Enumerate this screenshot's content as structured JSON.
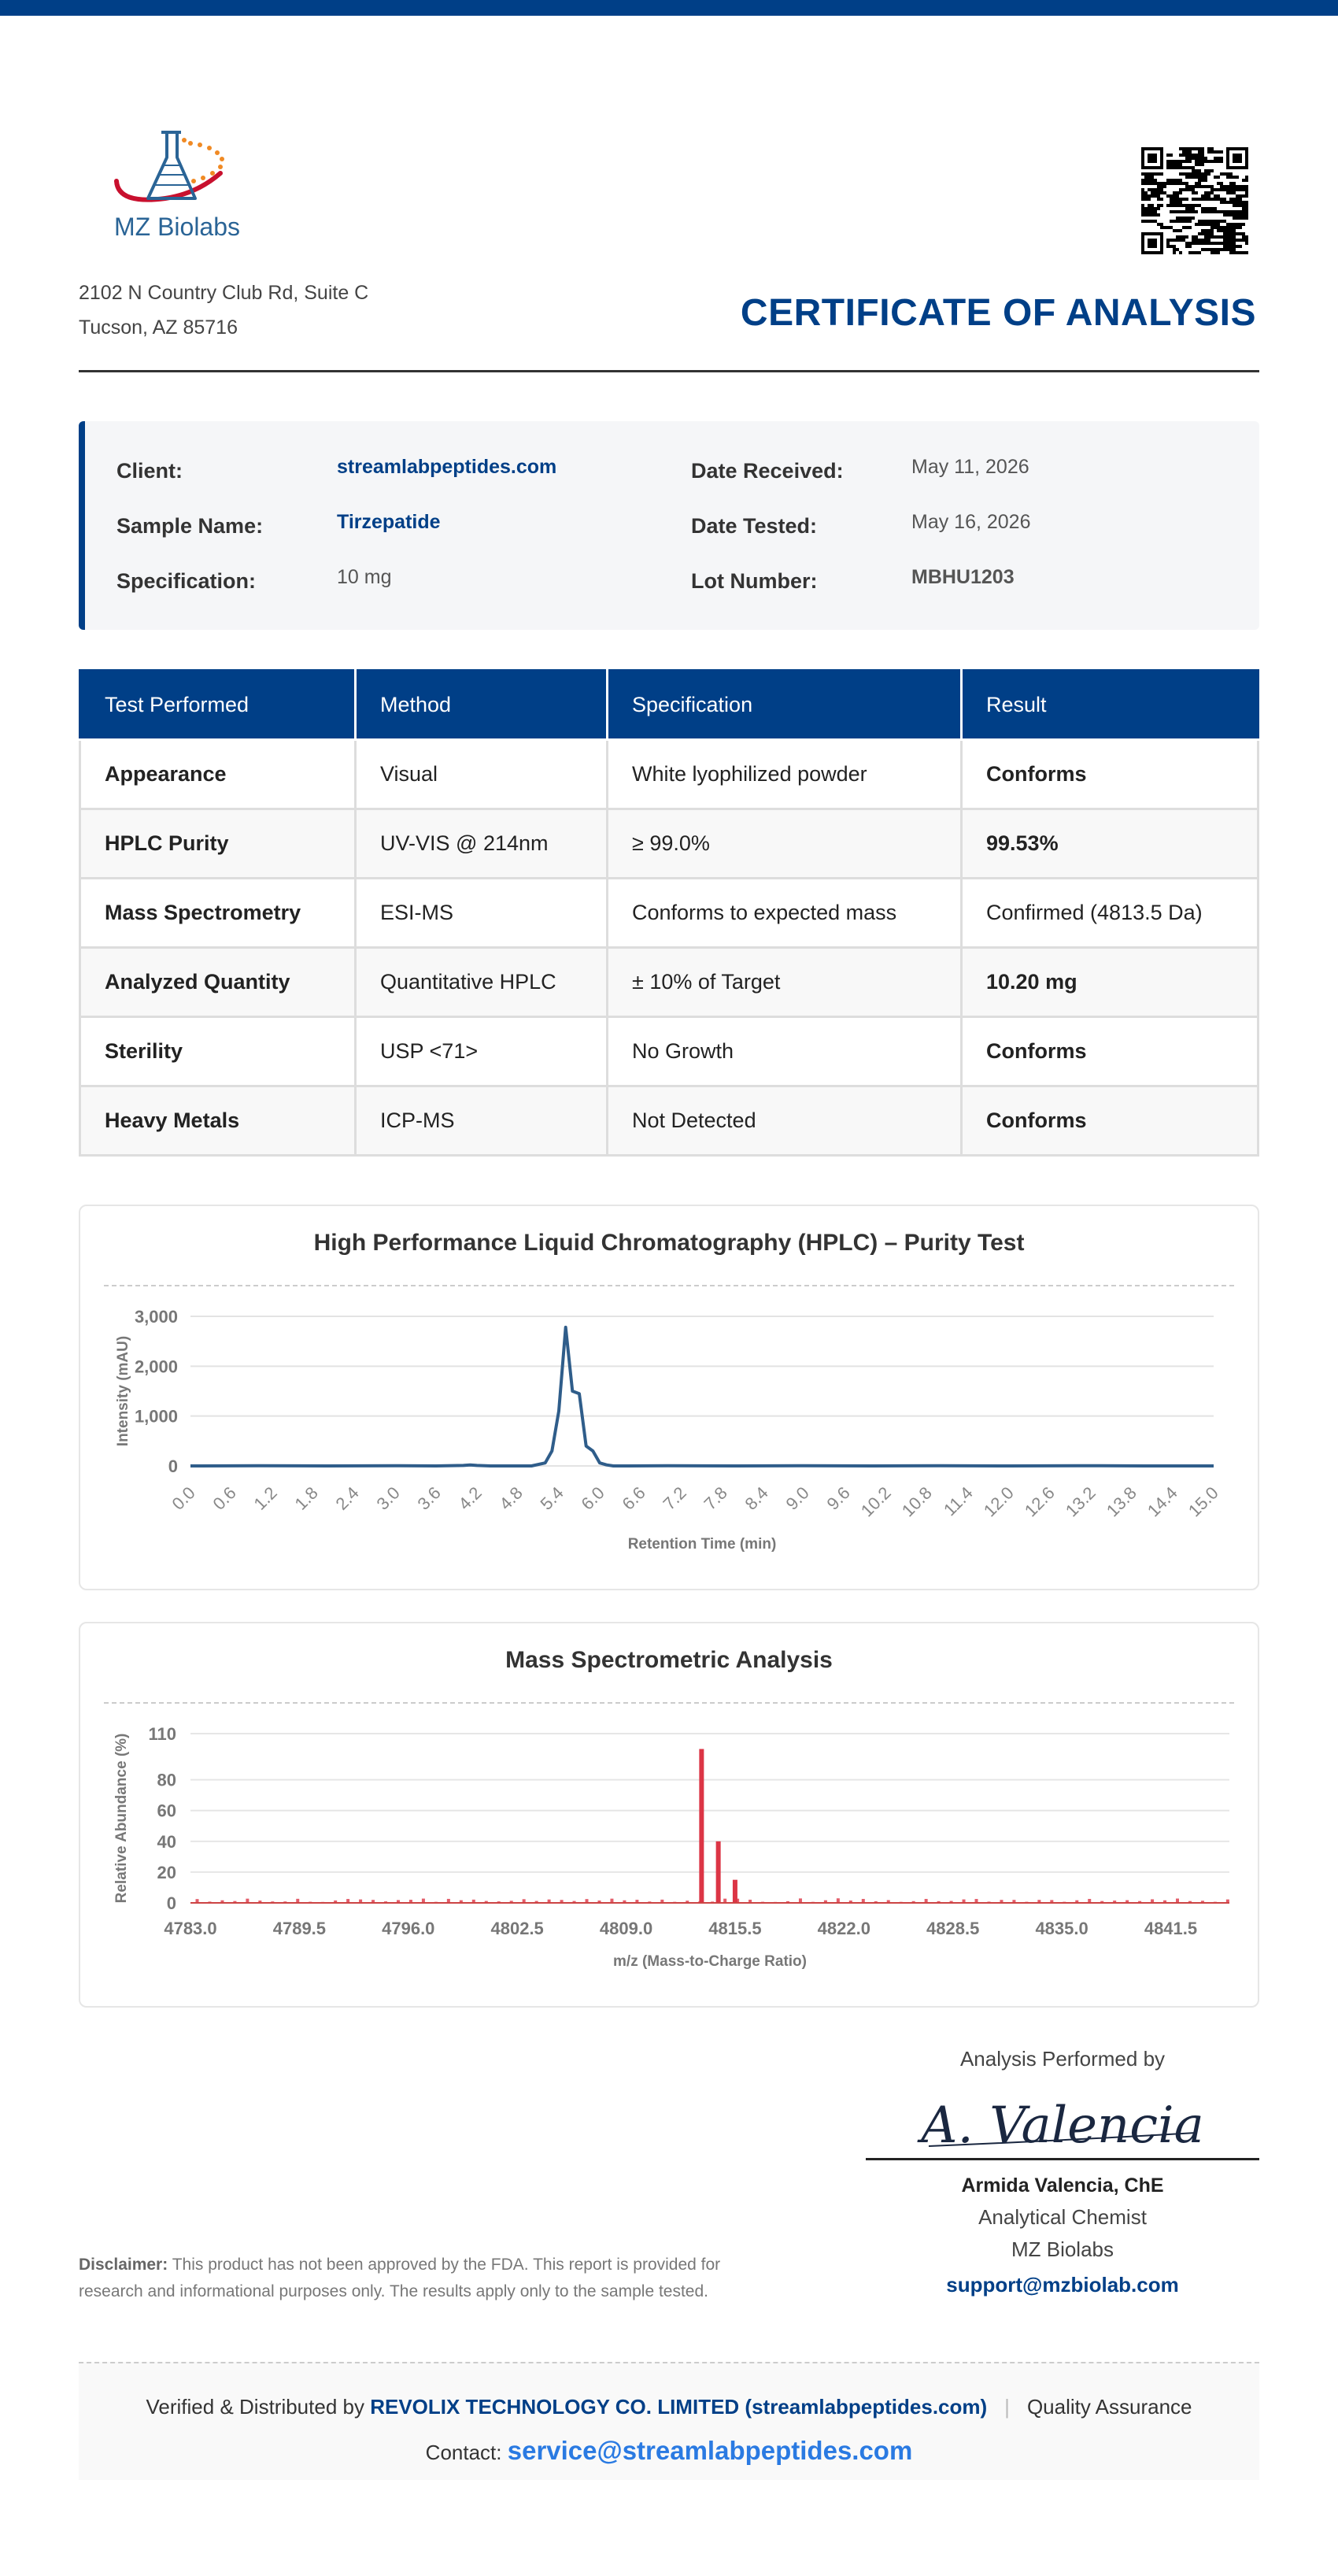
{
  "company": {
    "name": "MZ Biolabs",
    "address_line1": "2102 N Country Club Rd, Suite C",
    "address_line2": "Tucson, AZ 85716"
  },
  "document": {
    "title": "CERTIFICATE OF ANALYSIS"
  },
  "info": {
    "client_label": "Client:",
    "client_value": "streamlabpeptides.com",
    "sample_label": "Sample Name:",
    "sample_value": "Tirzepatide",
    "spec_label": "Specification:",
    "spec_value": "10 mg",
    "received_label": "Date Received:",
    "received_value": "May 11, 2026",
    "tested_label": "Date Tested:",
    "tested_value": "May 16, 2026",
    "lot_label": "Lot Number:",
    "lot_value": "MBHU1203"
  },
  "tests": {
    "headers": [
      "Test Performed",
      "Method",
      "Specification",
      "Result"
    ],
    "rows": [
      {
        "test": "Appearance",
        "method": "Visual",
        "spec": "White lyophilized powder",
        "result": "Conforms"
      },
      {
        "test": "HPLC Purity",
        "method": "UV-VIS @ 214nm",
        "spec": "≥ 99.0%",
        "result": "99.53%"
      },
      {
        "test": "Mass Spectrometry",
        "method": "ESI-MS",
        "spec": "Conforms to expected mass",
        "result": "Confirmed (4813.5 Da)"
      },
      {
        "test": "Analyzed Quantity",
        "method": "Quantitative HPLC",
        "spec": "± 10% of Target",
        "result": "10.20 mg"
      },
      {
        "test": "Sterility",
        "method": "USP <71>",
        "spec": "No Growth",
        "result": "Conforms"
      },
      {
        "test": "Heavy Metals",
        "method": "ICP-MS",
        "spec": "Not Detected",
        "result": "Conforms"
      }
    ]
  },
  "chart_data": [
    {
      "type": "line",
      "title": "High Performance Liquid Chromatography (HPLC) – Purity Test",
      "xlabel": "Retention Time (min)",
      "ylabel": "Intensity (mAU)",
      "xlim": [
        0,
        15
      ],
      "ylim": [
        0,
        3000
      ],
      "yticks": [
        "0",
        "1,000",
        "2,000",
        "3,000"
      ],
      "xticks": [
        "0.0",
        "0.6",
        "1.2",
        "1.8",
        "2.4",
        "3.0",
        "3.6",
        "4.2",
        "4.8",
        "5.4",
        "6.0",
        "6.6",
        "7.2",
        "7.8",
        "8.4",
        "9.0",
        "9.6",
        "10.2",
        "10.8",
        "11.4",
        "12.0",
        "12.6",
        "13.2",
        "13.8",
        "14.4",
        "15.0"
      ],
      "grid": true,
      "color": "#2f5d8a",
      "x": [
        0,
        1.0,
        2.0,
        3.0,
        3.6,
        4.0,
        4.1,
        4.2,
        4.4,
        5.0,
        5.2,
        5.3,
        5.4,
        5.5,
        5.6,
        5.7,
        5.8,
        5.9,
        6.0,
        6.1,
        6.2,
        6.4,
        7.0,
        8.0,
        9.0,
        10.0,
        11.0,
        12.0,
        13.0,
        14.0,
        15.0
      ],
      "y": [
        0,
        5,
        0,
        5,
        0,
        10,
        20,
        10,
        0,
        0,
        60,
        300,
        1100,
        2780,
        1500,
        1450,
        400,
        300,
        60,
        20,
        0,
        0,
        5,
        0,
        5,
        0,
        5,
        0,
        5,
        0,
        0
      ]
    },
    {
      "type": "bar",
      "title": "Mass Spectrometric Analysis",
      "xlabel": "m/z (Mass-to-Charge Ratio)",
      "ylabel": "Relative Abundance (%)",
      "xlim": [
        4783,
        4845
      ],
      "ylim": [
        0,
        110
      ],
      "yticks": [
        "0",
        "20",
        "40",
        "60",
        "80",
        "110"
      ],
      "xticks": [
        "4783.0",
        "4789.5",
        "4796.0",
        "4802.5",
        "4809.0",
        "4815.5",
        "4822.0",
        "4828.5",
        "4835.0",
        "4841.5"
      ],
      "grid": true,
      "color": "#dc3545",
      "peaks": [
        {
          "x": 4813.5,
          "y": 100
        },
        {
          "x": 4814.5,
          "y": 40
        },
        {
          "x": 4815.5,
          "y": 15
        }
      ],
      "baseline_noise_max": 3
    }
  ],
  "signature": {
    "header": "Analysis Performed by",
    "script": "A. Valencia",
    "name": "Armida Valencia, ChE",
    "role": "Analytical Chemist",
    "org": "MZ Biolabs",
    "email": "support@mzbiolab.com"
  },
  "disclaimer": {
    "label": "Disclaimer:",
    "text": " This product has not been approved by the FDA. This report is provided for research and informational purposes only. The results apply only to the sample tested."
  },
  "footer": {
    "prefix": "Verified & Distributed by ",
    "company": "REVOLIX TECHNOLOGY CO. LIMITED (streamlabpeptides.com)",
    "sep": "|",
    "qa": "Quality Assurance",
    "contact_label": "Contact: ",
    "contact_email": "service@streamlabpeptides.com"
  }
}
